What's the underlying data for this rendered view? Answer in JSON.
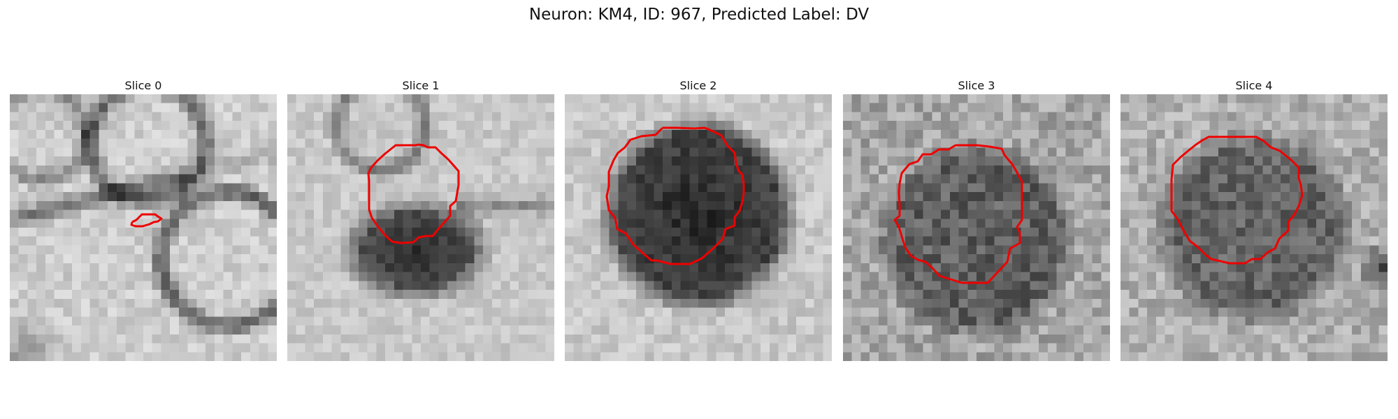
{
  "title": "Neuron: KM4, ID: 967, Predicted Label: DV",
  "contour_color": "#ee0000",
  "panels": [
    {
      "label": "Slice 0"
    },
    {
      "label": "Slice 1"
    },
    {
      "label": "Slice 2"
    },
    {
      "label": "Slice 3"
    },
    {
      "label": "Slice 4"
    }
  ]
}
